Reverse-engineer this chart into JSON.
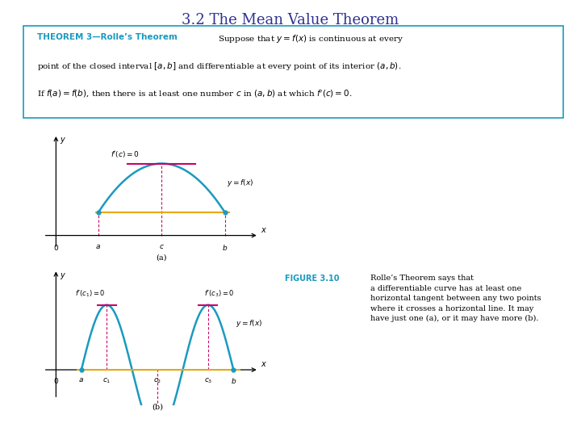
{
  "title": "3.2 The Mean Value Theorem",
  "title_color": "#2e3192",
  "title_fontsize": 13,
  "theorem_title": "THEOREM 3—Rolle’s Theorem",
  "theorem_title_color": "#1a9abf",
  "curve_color": "#1a9abf",
  "tangent_color": "#cc0066",
  "baseline_color": "#e6a817",
  "dashed_color": "#cc0066",
  "fig_caption": "FIGURE 3.10",
  "fig_caption_color": "#1a9abf",
  "fig_text": "Rolle’s Theorem says that\na differentiable curve has at least one\nhorizontal tangent between any two points\nwhere it crosses a horizontal line. It may\nhave just one (a), or it may have more (b).",
  "background_color": "#ffffff",
  "box_edge_color": "#1a9abf"
}
